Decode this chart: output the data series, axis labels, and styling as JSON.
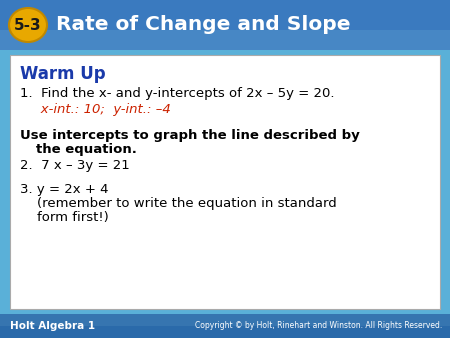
{
  "header_bg_top": "#2a6aaa",
  "header_bg_bottom": "#5ab0d8",
  "header_text_color": "#ffffff",
  "header_badge_bg": "#e8a800",
  "header_badge_text": "5-3",
  "header_title": "Rate of Change and Slope",
  "footer_bg_top": "#2a6aaa",
  "footer_bg_bottom": "#4a90c8",
  "footer_left": "Holt Algebra 1",
  "footer_right": "Copyright © by Holt, Rinehart and Winston. All Rights Reserved.",
  "footer_text_color": "#ffffff",
  "body_bg": "#ffffff",
  "outer_bg": "#5ab0d8",
  "warm_up_title": "Warm Up",
  "warm_up_color": "#1a3aaa",
  "item1": "1.  Find the x- and y-intercepts of 2x – 5y = 20.",
  "item1_answer": "   x-int.: 10;  y-int.: –4",
  "item1_answer_color": "#cc2200",
  "instruction_line1": "Use intercepts to graph the line described by",
  "instruction_line2": "    the equation.",
  "item2": "2.  7 x – 3y = 21",
  "item3_line1": "3. y = 2x + 4",
  "item3_line2": "    (remember to write the equation in standard",
  "item3_line3": "    form first!)",
  "text_color": "#000000"
}
